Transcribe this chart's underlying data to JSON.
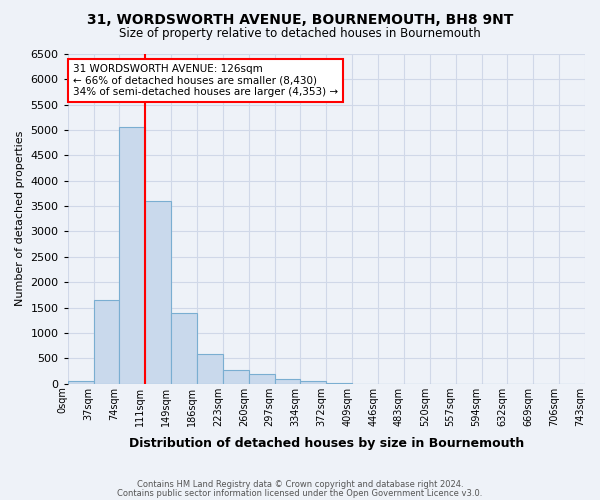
{
  "title": "31, WORDSWORTH AVENUE, BOURNEMOUTH, BH8 9NT",
  "subtitle": "Size of property relative to detached houses in Bournemouth",
  "xlabel": "Distribution of detached houses by size in Bournemouth",
  "ylabel": "Number of detached properties",
  "footnote1": "Contains HM Land Registry data © Crown copyright and database right 2024.",
  "footnote2": "Contains public sector information licensed under the Open Government Licence v3.0.",
  "bin_labels": [
    "0sqm",
    "37sqm",
    "74sqm",
    "111sqm",
    "149sqm",
    "186sqm",
    "223sqm",
    "260sqm",
    "297sqm",
    "334sqm",
    "372sqm",
    "409sqm",
    "446sqm",
    "483sqm",
    "520sqm",
    "557sqm",
    "594sqm",
    "632sqm",
    "669sqm",
    "706sqm",
    "743sqm"
  ],
  "bar_values": [
    60,
    1640,
    5060,
    3600,
    1390,
    580,
    260,
    195,
    100,
    50,
    10,
    0,
    0,
    0,
    0,
    0,
    0,
    0,
    0,
    0
  ],
  "bar_color": "#c9d9ec",
  "bar_edge_color": "#7aaed1",
  "red_line_x": 3,
  "annotation_title": "31 WORDSWORTH AVENUE: 126sqm",
  "annotation_line2": "← 66% of detached houses are smaller (8,430)",
  "annotation_line3": "34% of semi-detached houses are larger (4,353) →",
  "annotation_box_color": "white",
  "annotation_box_edge": "red",
  "ylim": [
    0,
    6500
  ],
  "yticks": [
    0,
    500,
    1000,
    1500,
    2000,
    2500,
    3000,
    3500,
    4000,
    4500,
    5000,
    5500,
    6000,
    6500
  ],
  "grid_color": "#d0d8e8",
  "background_color": "#eef2f8"
}
